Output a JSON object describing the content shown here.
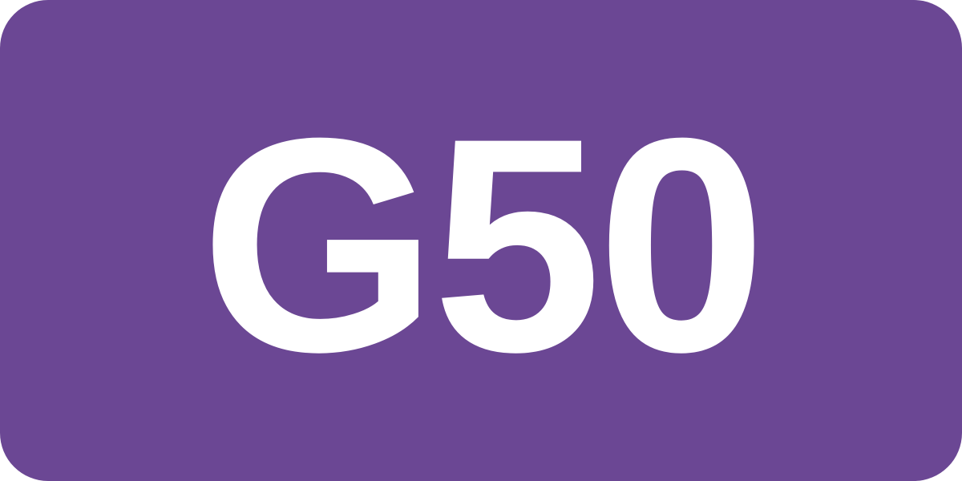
{
  "badge": {
    "text": "G50",
    "background_color": "#6B4794",
    "text_color": "#FFFFFF"
  }
}
